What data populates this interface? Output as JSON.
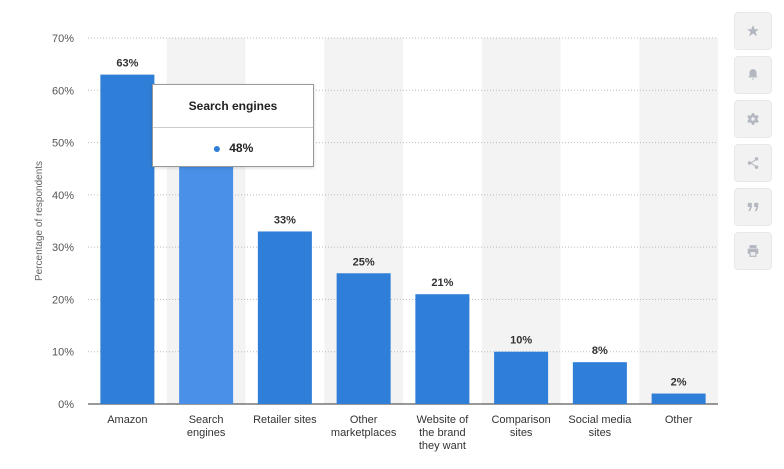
{
  "chart_data": {
    "type": "bar",
    "categories": [
      "Amazon",
      "Search engines",
      "Retailer sites",
      "Other marketplaces",
      "Website of the brand they want",
      "Comparison sites",
      "Social media sites",
      "Other"
    ],
    "category_lines": [
      [
        "Amazon"
      ],
      [
        "Search",
        "engines"
      ],
      [
        "Retailer sites"
      ],
      [
        "Other",
        "marketplaces"
      ],
      [
        "Website of",
        "the brand",
        "they want"
      ],
      [
        "Comparison",
        "sites"
      ],
      [
        "Social media",
        "sites"
      ],
      [
        "Other"
      ]
    ],
    "values": [
      63,
      48,
      33,
      25,
      21,
      10,
      8,
      2
    ],
    "data_labels": [
      "63%",
      "48%",
      "33%",
      "25%",
      "21%",
      "10%",
      "8%",
      "2%"
    ],
    "ylabel": "Percentage of respondents",
    "ylim": [
      0,
      70
    ],
    "yticks": [
      0,
      10,
      20,
      30,
      40,
      50,
      60,
      70
    ],
    "ytick_labels": [
      "0%",
      "10%",
      "20%",
      "30%",
      "40%",
      "50%",
      "60%",
      "70%"
    ],
    "grid": true,
    "highlighted_index": 1,
    "colors": {
      "bar": "#2f7ed8",
      "bar_highlight": "#4a90e8",
      "band": "#f3f3f3",
      "grid": "#bbbbbb"
    }
  },
  "tooltip": {
    "title": "Search engines",
    "value": "48%"
  },
  "toolbar": {
    "icons": [
      "star-icon",
      "bell-icon",
      "gear-icon",
      "share-icon",
      "quote-icon",
      "print-icon"
    ]
  }
}
